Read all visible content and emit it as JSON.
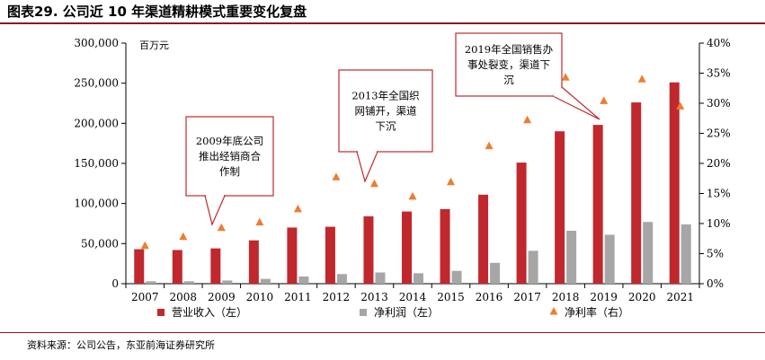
{
  "title": "图表29. 公司近 10 年渠道精耕模式重要变化复盘",
  "source": "资料来源：公司公告，东亚前海证券研究所",
  "colors": {
    "revenue": "#c0282d",
    "profit": "#a6a6a6",
    "margin": "#ed7d31",
    "rule": "#8b1a1a",
    "callout_border": "#c0282d"
  },
  "chart_data": {
    "type": "bar",
    "ylabel": "百万元",
    "categories": [
      "2007",
      "2008",
      "2009",
      "2010",
      "2011",
      "2012",
      "2013",
      "2014",
      "2015",
      "2016",
      "2017",
      "2018",
      "2019",
      "2020",
      "2021"
    ],
    "ylim": [
      0,
      300000
    ],
    "y_ticks": [
      "0",
      "50,000",
      "100,000",
      "150,000",
      "200,000",
      "250,000",
      "300,000"
    ],
    "y2lim": [
      0,
      40
    ],
    "y2_ticks": [
      "0%",
      "5%",
      "10%",
      "15%",
      "20%",
      "25%",
      "30%",
      "35%",
      "40%"
    ],
    "series": [
      {
        "name": "营业收入（左）",
        "kind": "bar",
        "axis": "left",
        "values": [
          43000,
          42000,
          44000,
          54000,
          70000,
          71000,
          84000,
          90000,
          93000,
          111000,
          151000,
          190000,
          198000,
          226000,
          251000
        ]
      },
      {
        "name": "净利润（左）",
        "kind": "bar",
        "axis": "left",
        "values": [
          3000,
          3000,
          4000,
          6000,
          9000,
          12000,
          14000,
          13000,
          16000,
          26000,
          41000,
          66000,
          61000,
          77000,
          74000
        ]
      },
      {
        "name": "净利率（右）",
        "kind": "scatter",
        "axis": "right",
        "values": [
          6.3,
          7.8,
          9.3,
          10.2,
          12.4,
          17.7,
          16.6,
          14.5,
          16.9,
          22.9,
          27.2,
          34.3,
          30.4,
          34.0,
          29.5
        ]
      }
    ],
    "legend_position": "bottom",
    "grid": false,
    "annotations": [
      {
        "text": "2009年底公司推出经销商合作制",
        "category": "2009"
      },
      {
        "text": "2013年全国织网铺开，渠道下沉",
        "category": "2013"
      },
      {
        "text": "2019年全国销售办事处裂变，渠道下沉",
        "category": "2019"
      }
    ]
  }
}
